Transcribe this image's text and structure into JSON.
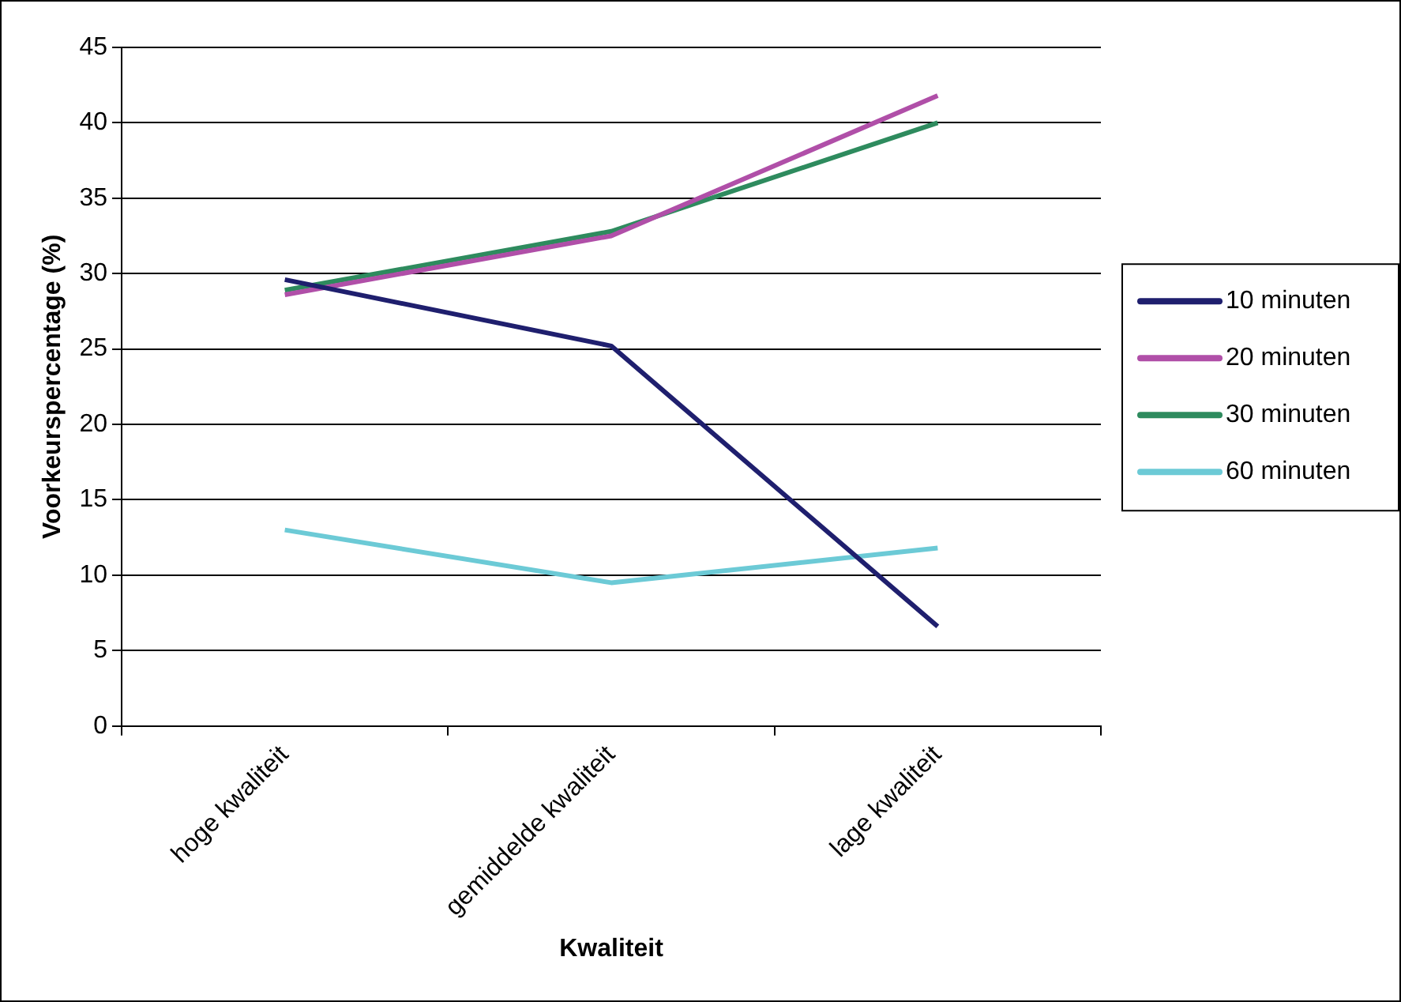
{
  "chart_data": {
    "type": "line",
    "xlabel": "Kwaliteit",
    "ylabel": "Voorkeurspercentage (%)",
    "categories": [
      "hoge kwaliteit",
      "gemiddelde kwaliteit",
      "lage kwaliteit"
    ],
    "series": [
      {
        "name": "10 minuten",
        "color": "#1f1f6e",
        "values": [
          29.6,
          25.2,
          6.6
        ]
      },
      {
        "name": "20 minuten",
        "color": "#b04fa8",
        "values": [
          28.6,
          32.5,
          41.8
        ]
      },
      {
        "name": "30 minuten",
        "color": "#2e8b5e",
        "values": [
          28.9,
          32.8,
          40.0
        ]
      },
      {
        "name": "60 minuten",
        "color": "#6ccad6",
        "values": [
          13.0,
          9.5,
          11.8
        ]
      }
    ],
    "ylim": [
      0,
      45
    ],
    "yticks": [
      0,
      5,
      10,
      15,
      20,
      25,
      30,
      35,
      40,
      45
    ],
    "grid": "y",
    "legend": "right",
    "marker": "none"
  }
}
